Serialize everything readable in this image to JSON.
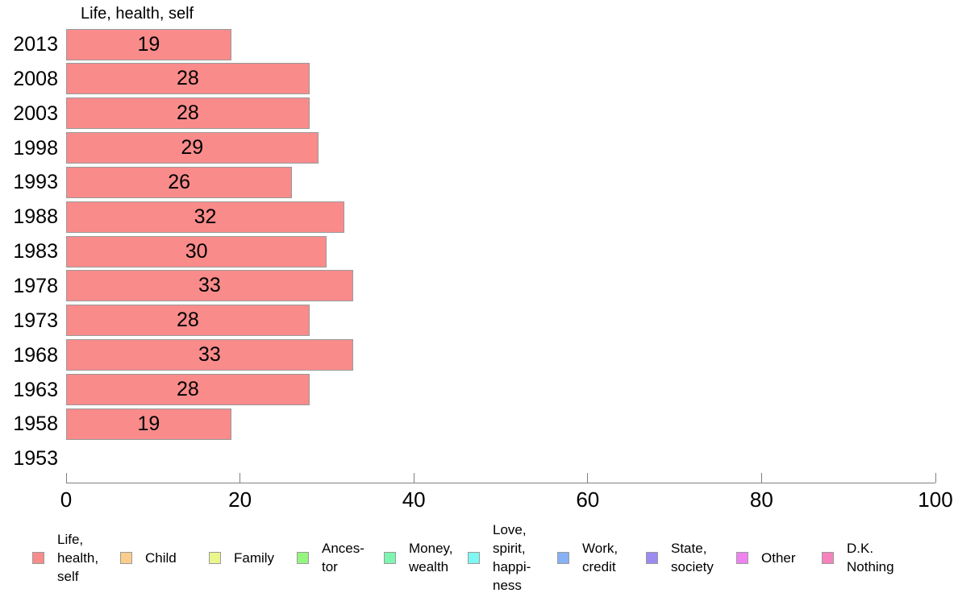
{
  "chart_data": {
    "type": "bar",
    "orientation": "horizontal",
    "title": "Life, health, self",
    "series_name": "Life, health, self",
    "categories": [
      "2013",
      "2008",
      "2003",
      "1998",
      "1993",
      "1988",
      "1983",
      "1978",
      "1973",
      "1968",
      "1963",
      "1958",
      "1953"
    ],
    "values": [
      19,
      28,
      28,
      29,
      26,
      32,
      30,
      33,
      28,
      33,
      28,
      19,
      null
    ],
    "xlim": [
      0,
      100
    ],
    "x_ticks": [
      0,
      20,
      40,
      60,
      80,
      100
    ],
    "grid": false,
    "bar_color": "#f98b8b",
    "bar_border_color": "#9a9a9a",
    "axis_color": "#808080",
    "legend_position": "bottom",
    "legend": [
      {
        "label": "Life,\nhealth,\nself",
        "color": "#f98b8b"
      },
      {
        "label": "Child",
        "color": "#fbcd8d"
      },
      {
        "label": "Family",
        "color": "#eaf68c"
      },
      {
        "label": "Ances-\ntor",
        "color": "#94f57f"
      },
      {
        "label": "Money,\nwealth",
        "color": "#7ef6b2"
      },
      {
        "label": "Love,\nspirit,\nhappi-\nness",
        "color": "#7ff7f2"
      },
      {
        "label": "Work,\ncredit",
        "color": "#86b2f5"
      },
      {
        "label": "State,\nsociety",
        "color": "#9c8cf0"
      },
      {
        "label": "Other",
        "color": "#ee83f0"
      },
      {
        "label": "D.K.\nNothing",
        "color": "#f783bd"
      }
    ]
  }
}
